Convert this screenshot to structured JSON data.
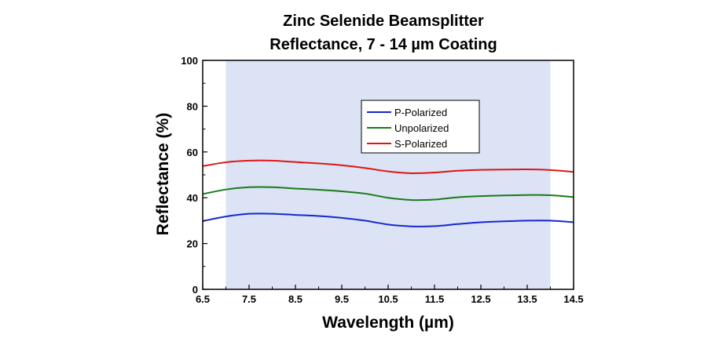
{
  "chart_data": {
    "type": "line",
    "title": [
      "Zinc Selenide Beamsplitter",
      "Reflectance, 7 - 14 µm Coating"
    ],
    "xlabel": "Wavelength (µm)",
    "ylabel": "Reflectance (%)",
    "xlim": [
      6.5,
      14.5
    ],
    "ylim": [
      0,
      100
    ],
    "xticks": [
      "6.5",
      "7.5",
      "8.5",
      "9.5",
      "10.5",
      "11.5",
      "12.5",
      "13.5",
      "14.5"
    ],
    "yticks": [
      "0",
      "20",
      "40",
      "60",
      "80",
      "100"
    ],
    "grid": false,
    "legend_position": "top-center",
    "shaded_band": {
      "from": 7,
      "to": 14,
      "color": "#dbe3f4"
    },
    "series": [
      {
        "name": "P-Polarized",
        "color": "#1428d2",
        "x": [
          6.5,
          7.0,
          7.5,
          8.0,
          8.5,
          9.0,
          9.5,
          10.0,
          10.5,
          11.0,
          11.5,
          12.0,
          12.5,
          13.0,
          13.5,
          14.0,
          14.5
        ],
        "y": [
          29.8,
          31.8,
          33.0,
          33.0,
          32.5,
          32.0,
          31.2,
          30.0,
          28.3,
          27.5,
          27.6,
          28.5,
          29.3,
          29.7,
          30.0,
          30.0,
          29.3
        ]
      },
      {
        "name": "Unpolarized",
        "color": "#1a7a1a",
        "x": [
          6.5,
          7.0,
          7.5,
          8.0,
          8.5,
          9.0,
          9.5,
          10.0,
          10.5,
          11.0,
          11.5,
          12.0,
          12.5,
          13.0,
          13.5,
          14.0,
          14.5
        ],
        "y": [
          41.6,
          43.6,
          44.6,
          44.6,
          44.0,
          43.5,
          42.8,
          41.8,
          40.0,
          39.0,
          39.2,
          40.2,
          40.7,
          41.0,
          41.2,
          41.1,
          40.3
        ]
      },
      {
        "name": "S-Polarized",
        "color": "#e01414",
        "x": [
          6.5,
          7.0,
          7.5,
          8.0,
          8.5,
          9.0,
          9.5,
          10.0,
          10.5,
          11.0,
          11.5,
          12.0,
          12.5,
          13.0,
          13.5,
          14.0,
          14.5
        ],
        "y": [
          53.8,
          55.5,
          56.2,
          56.2,
          55.6,
          55.0,
          54.2,
          53.0,
          51.5,
          50.7,
          51.0,
          51.8,
          52.2,
          52.3,
          52.4,
          52.1,
          51.3
        ]
      }
    ]
  }
}
